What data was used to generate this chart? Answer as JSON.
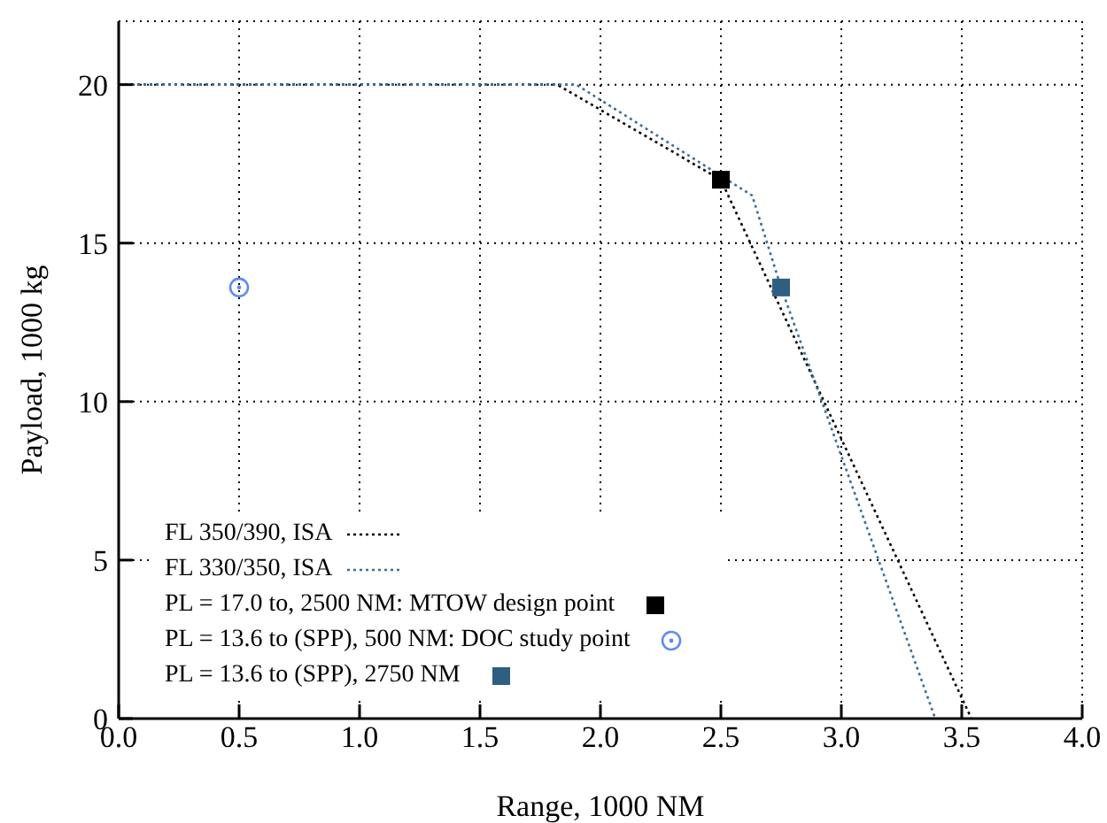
{
  "chart_data": {
    "type": "line",
    "xlabel": "Range, 1000 NM",
    "ylabel": "Payload, 1000 kg",
    "xlim": [
      0,
      4
    ],
    "ylim": [
      0,
      22
    ],
    "xticks": [
      {
        "value": 0,
        "label": "0.0"
      },
      0.5,
      {
        "value": 1,
        "label": "1.0"
      },
      1.5,
      {
        "value": 2,
        "label": "2.0"
      },
      2.5,
      {
        "value": 3,
        "label": "3.0"
      },
      3.5,
      {
        "value": 4,
        "label": "4.0"
      }
    ],
    "yticks": [
      0,
      5,
      10,
      15,
      20
    ],
    "grid": true,
    "legend": "bottom left",
    "series": [
      {
        "name": "FL 350/390, ISA",
        "type": "line",
        "color": "#000000",
        "line_style": "dotted",
        "marker": "none",
        "x": [
          0,
          1.82,
          2.5,
          3.54
        ],
        "values": [
          20,
          20,
          17.0,
          0
        ]
      },
      {
        "name": "FL 330/350, ISA",
        "type": "line",
        "color": "#3a6f96",
        "line_style": "dotted",
        "marker": "none",
        "x": [
          0,
          1.9,
          2.63,
          2.75,
          3.39
        ],
        "values": [
          20,
          20,
          16.5,
          13.6,
          0
        ]
      },
      {
        "name": "PL = 17.0 to, 2500 NM: MTOW design point",
        "type": "scatter",
        "color": "#000000",
        "marker": "square",
        "x": [
          2.5
        ],
        "values": [
          17.0
        ]
      },
      {
        "name": "PL = 13.6 to (SPP), 500 NM: DOC study point",
        "type": "scatter",
        "color": "#5b8def",
        "marker": "circle",
        "x": [
          0.5
        ],
        "values": [
          13.6
        ]
      },
      {
        "name": "PL = 13.6 to (SPP), 2750 NM",
        "type": "scatter",
        "color": "#2f5f80",
        "marker": "square",
        "x": [
          2.75
        ],
        "values": [
          13.6
        ]
      }
    ]
  }
}
